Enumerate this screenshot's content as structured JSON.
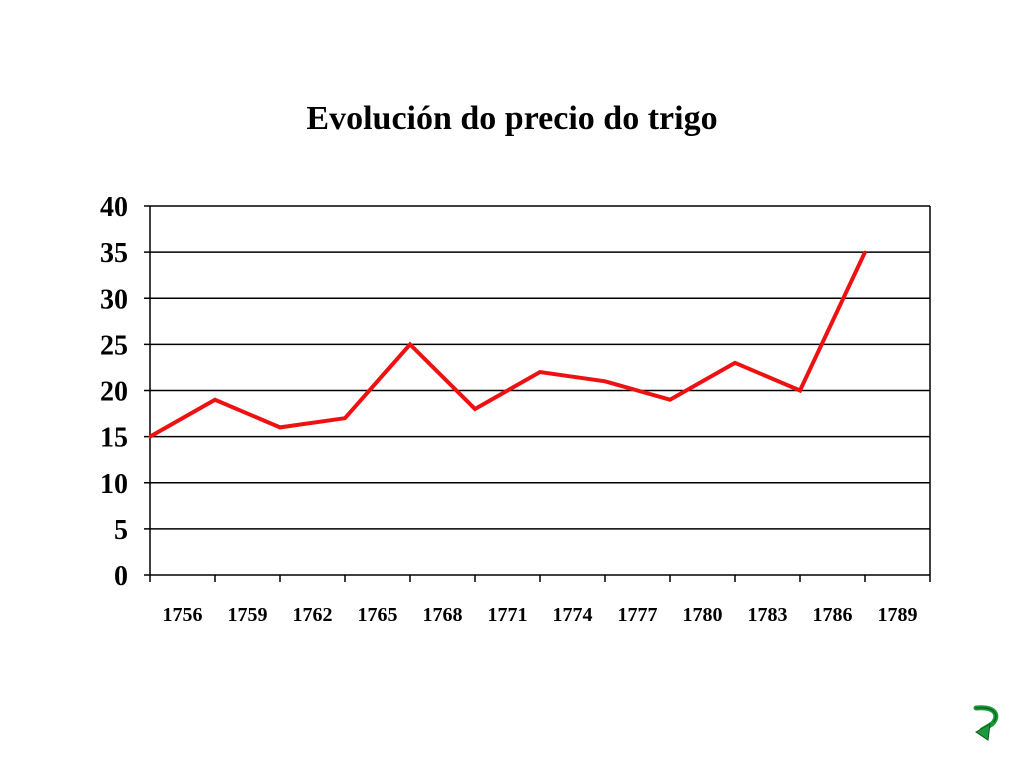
{
  "chart_data": {
    "type": "line",
    "title": "Evolución do precio do trigo",
    "xlabel": "",
    "ylabel": "",
    "categories": [
      "1756",
      "1759",
      "1762",
      "1765",
      "1768",
      "1771",
      "1774",
      "1777",
      "1780",
      "1783",
      "1786",
      "1789"
    ],
    "yticks": [
      "0",
      "5",
      "10",
      "15",
      "20",
      "25",
      "30",
      "35",
      "40"
    ],
    "ylim": [
      0,
      40
    ],
    "series": [
      {
        "values": [
          15,
          19,
          16,
          17,
          25,
          18,
          22,
          21,
          19,
          23,
          20,
          35
        ],
        "color": "#ee1111"
      }
    ],
    "grid": "horizontal",
    "legend": "none"
  },
  "navigation": {
    "return_icon": "curved-return-arrow-icon",
    "icon_color": "#1a9a3a"
  }
}
